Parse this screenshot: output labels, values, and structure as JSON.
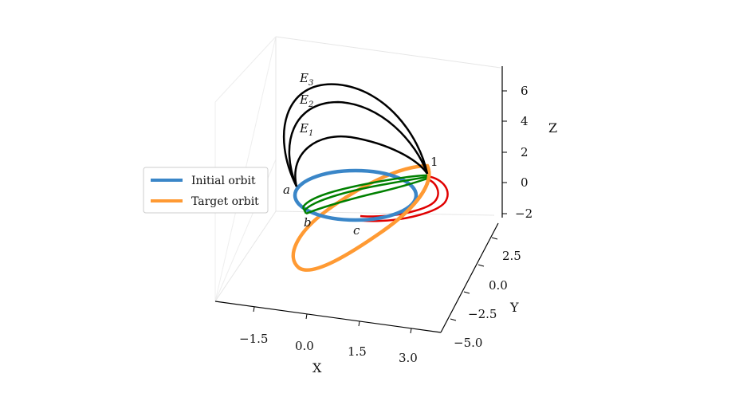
{
  "chart_data": {
    "type": "line",
    "projection": "3d",
    "axes": {
      "x": {
        "label": "X",
        "ticks": [
          "−1.5",
          "0.0",
          "1.5",
          "3.0"
        ]
      },
      "y": {
        "label": "Y",
        "ticks": [
          "−5.0",
          "−2.5",
          "0.0",
          "2.5"
        ]
      },
      "z": {
        "label": "Z",
        "ticks": [
          "−2",
          "0",
          "2",
          "4",
          "6"
        ]
      }
    },
    "legend": {
      "position": "left",
      "entries": [
        {
          "name": "Initial orbit",
          "color": "#3a86c8"
        },
        {
          "name": "Target orbit",
          "color": "#ff9a33"
        }
      ]
    },
    "point_labels": {
      "a": "a",
      "b": "b",
      "c": "c",
      "one": "1",
      "E1": "E",
      "E1_sub": "1",
      "E2": "E",
      "E2_sub": "2",
      "E3": "E",
      "E3_sub": "3"
    },
    "series": [
      {
        "name": "Initial orbit",
        "color": "#3a86c8",
        "shape": "circle",
        "center": [
          0,
          0,
          0
        ],
        "radius": 2.5
      },
      {
        "name": "Target orbit",
        "color": "#ff9a33",
        "shape": "inclined ellipse"
      },
      {
        "color": "#000000",
        "shape": "transfer arcs",
        "count": 3,
        "peaks_z": [
          3.5,
          5.2,
          6.0
        ]
      },
      {
        "color": "#008000",
        "shape": "transfer arcs",
        "count": 3
      },
      {
        "color": "#e00000",
        "shape": "transfer arcs",
        "count": 2
      }
    ],
    "grid": false
  }
}
